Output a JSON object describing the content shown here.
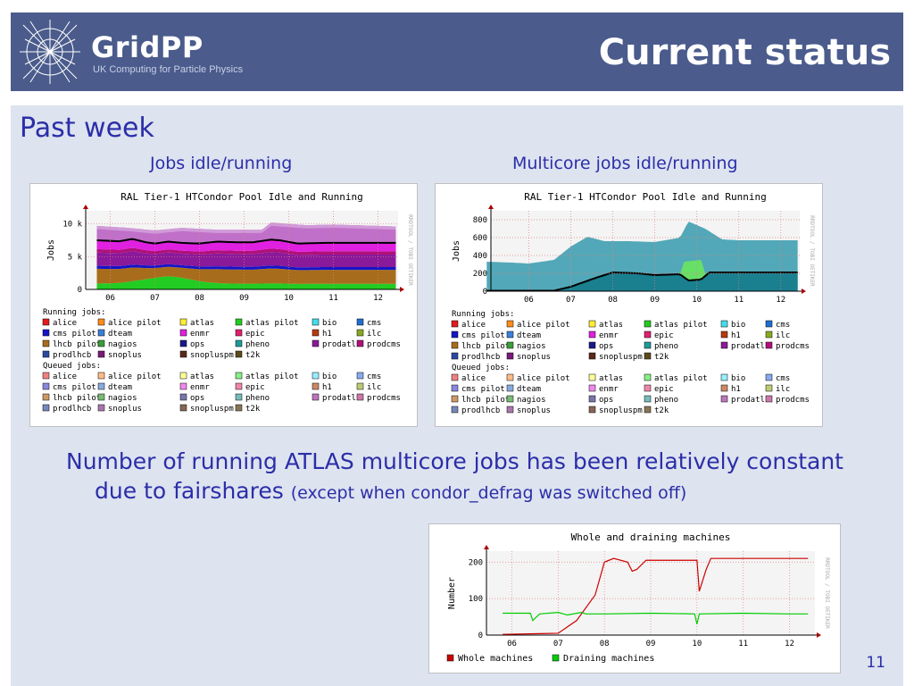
{
  "header": {
    "logo_name": "GridPP",
    "logo_subtitle": "UK Computing for Particle Physics",
    "title": "Current status"
  },
  "subtitle": "Past week",
  "captions": [
    "Jobs idle/running",
    "Multicore jobs idle/running"
  ],
  "body": {
    "line1": "Number of running ATLAS multicore jobs has been relatively constant",
    "line2": "due to fairshares",
    "note": "(except when condor_defrag was switched off)"
  },
  "page_number": "11",
  "colors": {
    "header_bg": "#4a5b8c",
    "panel_bg": "#dde3ef",
    "text_blue": "#2b2ea8"
  },
  "watermark": "RRDTOOL / TOBI OETIKER",
  "chart_data": [
    {
      "type": "area",
      "title": "RAL Tier-1 HTCondor Pool Idle and Running",
      "ylabel": "Jobs",
      "x": [
        "06",
        "07",
        "08",
        "09",
        "10",
        "11",
        "12"
      ],
      "y_ticks": [
        "0",
        "5 k",
        "10 k"
      ],
      "ylim": [
        0,
        12000
      ],
      "legend_sections": [
        {
          "heading": "Running jobs:",
          "items": [
            {
              "name": "alice",
              "color": "#e41a1c"
            },
            {
              "name": "alice pilot",
              "color": "#ff8c1a"
            },
            {
              "name": "atlas",
              "color": "#ffee33"
            },
            {
              "name": "atlas pilot",
              "color": "#22cc22"
            },
            {
              "name": "bio",
              "color": "#44ddee"
            },
            {
              "name": "cms",
              "color": "#1f6fd0"
            },
            {
              "name": "cms pilot",
              "color": "#1515c8"
            },
            {
              "name": "dteam",
              "color": "#3c7fd8"
            },
            {
              "name": "enmr",
              "color": "#e020e0"
            },
            {
              "name": "epic",
              "color": "#e0206e"
            },
            {
              "name": "h1",
              "color": "#b83a10"
            },
            {
              "name": "ilc",
              "color": "#88aa22"
            },
            {
              "name": "lhcb pilot",
              "color": "#a86d1c"
            },
            {
              "name": "nagios",
              "color": "#3a9e3a"
            },
            {
              "name": "ops",
              "color": "#1a1a88"
            },
            {
              "name": "pheno",
              "color": "#1f9b9b"
            },
            {
              "name": "prodatls",
              "color": "#8a1a9a"
            },
            {
              "name": "prodcms",
              "color": "#b0107a"
            },
            {
              "name": "prodlhcb",
              "color": "#2a4aa0"
            },
            {
              "name": "snoplus",
              "color": "#7a1a7a"
            },
            {
              "name": "snopluspm",
              "color": "#5a2a1a"
            },
            {
              "name": "t2k",
              "color": "#5c4a1a"
            }
          ]
        },
        {
          "heading": "Queued jobs:",
          "items": [
            {
              "name": "alice",
              "color": "#f08080"
            },
            {
              "name": "alice pilot",
              "color": "#ffbb88"
            },
            {
              "name": "atlas",
              "color": "#ffff99"
            },
            {
              "name": "atlas pilot",
              "color": "#88ee88"
            },
            {
              "name": "bio",
              "color": "#99eeff"
            },
            {
              "name": "cms",
              "color": "#88aaee"
            },
            {
              "name": "cms pilot",
              "color": "#8888dd"
            },
            {
              "name": "dteam",
              "color": "#88aadd"
            },
            {
              "name": "enmr",
              "color": "#ee88ee"
            },
            {
              "name": "epic",
              "color": "#ee88aa"
            },
            {
              "name": "h1",
              "color": "#cc8866"
            },
            {
              "name": "ilc",
              "color": "#bbcc77"
            },
            {
              "name": "lhcb pilot",
              "color": "#cc9966"
            },
            {
              "name": "nagios",
              "color": "#77bb77"
            },
            {
              "name": "ops",
              "color": "#7777aa"
            },
            {
              "name": "pheno",
              "color": "#77bbbb"
            },
            {
              "name": "prodatls",
              "color": "#bb77bb"
            },
            {
              "name": "prodcms",
              "color": "#cc77aa"
            },
            {
              "name": "prodlhcb",
              "color": "#7788bb"
            },
            {
              "name": "snoplus",
              "color": "#aa77aa"
            },
            {
              "name": "snopluspm",
              "color": "#886655"
            },
            {
              "name": "t2k",
              "color": "#887755"
            }
          ]
        }
      ],
      "total_running": [
        [
          5.7,
          7.5
        ],
        [
          6.2,
          7.35
        ],
        [
          6.5,
          7.7
        ],
        [
          6.8,
          7.2
        ],
        [
          7.0,
          7.0
        ],
        [
          7.3,
          7.3
        ],
        [
          7.6,
          7.1
        ],
        [
          8.0,
          7.0
        ],
        [
          8.4,
          7.3
        ],
        [
          8.8,
          7.2
        ],
        [
          9.2,
          7.2
        ],
        [
          9.6,
          7.6
        ],
        [
          9.8,
          7.5
        ],
        [
          10.2,
          7.0
        ],
        [
          10.8,
          7.1
        ],
        [
          11.4,
          7.1
        ],
        [
          12.0,
          7.1
        ],
        [
          12.4,
          7.1
        ]
      ],
      "total_queued_top": [
        [
          5.7,
          9.7
        ],
        [
          6.4,
          9.4
        ],
        [
          7.0,
          9.0
        ],
        [
          7.6,
          9.4
        ],
        [
          8.4,
          9.1
        ],
        [
          9.4,
          9.1
        ],
        [
          9.6,
          10.2
        ],
        [
          10.0,
          10.0
        ],
        [
          10.4,
          9.8
        ],
        [
          11.0,
          9.9
        ],
        [
          12.0,
          9.7
        ],
        [
          12.4,
          9.6
        ]
      ]
    },
    {
      "type": "area",
      "title": "RAL Tier-1 HTCondor Pool Idle and Running",
      "ylabel": "Jobs",
      "x": [
        "06",
        "07",
        "08",
        "09",
        "10",
        "11",
        "12"
      ],
      "y_ticks": [
        "0",
        "200",
        "400",
        "600",
        "800"
      ],
      "ylim": [
        0,
        900
      ],
      "total_queued": [
        [
          5.0,
          330
        ],
        [
          5.6,
          320
        ],
        [
          6.0,
          310
        ],
        [
          6.6,
          350
        ],
        [
          7.0,
          500
        ],
        [
          7.4,
          610
        ],
        [
          7.8,
          560
        ],
        [
          8.4,
          560
        ],
        [
          9.0,
          550
        ],
        [
          9.6,
          600
        ],
        [
          9.8,
          780
        ],
        [
          10.2,
          700
        ],
        [
          10.6,
          580
        ],
        [
          11.0,
          570
        ],
        [
          12.4,
          570
        ]
      ],
      "running": [
        [
          5.0,
          5
        ],
        [
          6.6,
          5
        ],
        [
          7.0,
          50
        ],
        [
          7.6,
          150
        ],
        [
          8.0,
          210
        ],
        [
          8.6,
          200
        ],
        [
          9.0,
          180
        ],
        [
          9.6,
          190
        ],
        [
          9.8,
          120
        ],
        [
          10.1,
          130
        ],
        [
          10.3,
          210
        ],
        [
          12.4,
          210
        ]
      ],
      "atlas_pilot_queued": [
        [
          9.6,
          190
        ],
        [
          9.7,
          330
        ],
        [
          10.1,
          350
        ],
        [
          10.2,
          200
        ],
        [
          10.3,
          190
        ]
      ]
    },
    {
      "type": "line",
      "title": "Whole and draining machines",
      "ylabel": "Number",
      "x": [
        "06",
        "07",
        "08",
        "09",
        "10",
        "11",
        "12"
      ],
      "y_ticks": [
        "0",
        "100",
        "200"
      ],
      "ylim": [
        0,
        230
      ],
      "series": [
        {
          "name": "Whole machines",
          "color": "#cc0000",
          "points": [
            [
              5.8,
              2
            ],
            [
              6.6,
              4
            ],
            [
              7.0,
              5
            ],
            [
              7.4,
              40
            ],
            [
              7.8,
              110
            ],
            [
              8.0,
              200
            ],
            [
              8.2,
              210
            ],
            [
              8.5,
              200
            ],
            [
              8.6,
              175
            ],
            [
              8.7,
              180
            ],
            [
              8.9,
              205
            ],
            [
              10.0,
              205
            ],
            [
              10.05,
              120
            ],
            [
              10.2,
              180
            ],
            [
              10.3,
              210
            ],
            [
              12.4,
              210
            ]
          ]
        },
        {
          "name": "Draining machines",
          "color": "#00cc00",
          "points": [
            [
              5.8,
              60
            ],
            [
              6.0,
              60
            ],
            [
              6.4,
              60
            ],
            [
              6.45,
              40
            ],
            [
              6.6,
              58
            ],
            [
              7.0,
              62
            ],
            [
              7.2,
              55
            ],
            [
              7.5,
              62
            ],
            [
              7.6,
              58
            ],
            [
              8.0,
              58
            ],
            [
              9.0,
              60
            ],
            [
              9.95,
              58
            ],
            [
              10.0,
              30
            ],
            [
              10.05,
              58
            ],
            [
              11.0,
              60
            ],
            [
              12.0,
              58
            ],
            [
              12.4,
              58
            ]
          ]
        }
      ]
    }
  ]
}
